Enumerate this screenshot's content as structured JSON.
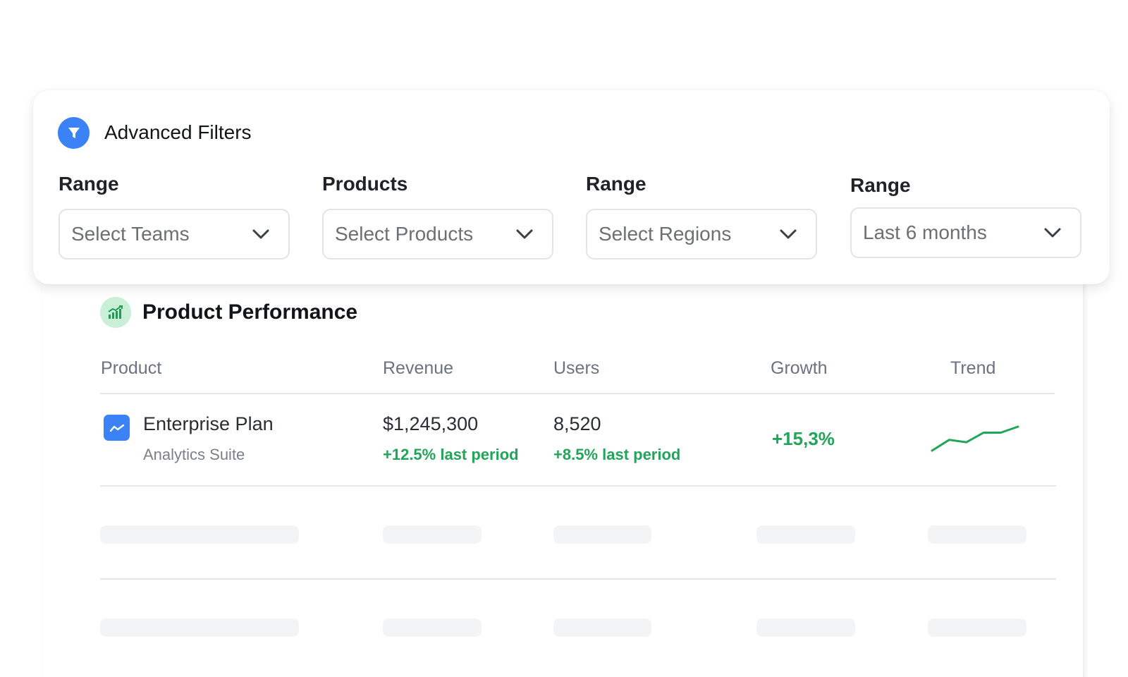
{
  "filters": {
    "title": "Advanced Filters",
    "icon": "filter-icon",
    "fields": [
      {
        "label": "Range",
        "value": "Select Teams"
      },
      {
        "label": "Products",
        "value": "Select Products"
      },
      {
        "label": "Range",
        "value": "Select Regions"
      },
      {
        "label": "Range",
        "value": "Last 6 months"
      }
    ]
  },
  "performance": {
    "title": "Product Performance",
    "icon": "chart-bar-icon",
    "columns": {
      "product": "Product",
      "revenue": "Revenue",
      "users": "Users",
      "growth": "Growth",
      "trend": "Trend"
    },
    "rows": [
      {
        "icon": "trend-line-icon",
        "name": "Enterprise Plan",
        "subtitle": "Analytics Suite",
        "revenue": "$1,245,300",
        "revenue_delta": "+12.5% last period",
        "users": "8,520",
        "users_delta": "+8.5% last period",
        "growth": "+15,3%",
        "trend": [
          0.0,
          0.45,
          0.35,
          0.75,
          0.75,
          1.0
        ]
      }
    ]
  },
  "colors": {
    "accent_blue": "#3b82f6",
    "positive_green": "#22a55a",
    "chart_icon_bg": "#c9efd6",
    "skeleton": "#f3f4f6"
  }
}
